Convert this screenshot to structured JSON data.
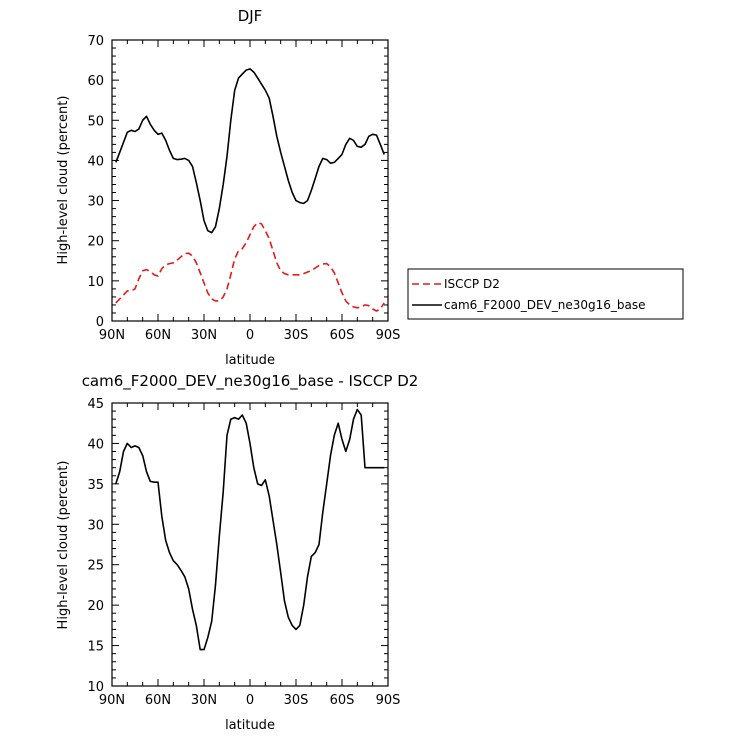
{
  "chart_data": [
    {
      "type": "line",
      "title": "DJF",
      "xlabel": "latitude",
      "ylabel": "High-level cloud (percent)",
      "xlim": [
        90,
        -90
      ],
      "ylim": [
        0,
        70
      ],
      "xticks": [
        90,
        60,
        30,
        0,
        -30,
        -60,
        -90
      ],
      "xtick_labels": [
        "90N",
        "60N",
        "30N",
        "0",
        "30S",
        "60S",
        "90S"
      ],
      "yticks": [
        0,
        10,
        20,
        30,
        40,
        50,
        60,
        70
      ],
      "ytick_labels": [
        "0",
        "10",
        "20",
        "30",
        "40",
        "50",
        "60",
        "70"
      ],
      "grid": false,
      "legend": {
        "placement": "right",
        "entries": [
          "ISCCP D2",
          "cam6_F2000_DEV_ne30g16_base"
        ]
      },
      "series": [
        {
          "name": "ISCCP D2",
          "color": "#e41a1c",
          "dash": "dashed",
          "x": [
            87.5,
            85,
            82.5,
            80,
            77.5,
            75,
            72.5,
            70,
            67.5,
            65,
            62.5,
            60,
            57.5,
            55,
            52.5,
            50,
            47.5,
            45,
            42.5,
            40,
            37.5,
            35,
            32.5,
            30,
            27.5,
            25,
            22.5,
            20,
            17.5,
            15,
            12.5,
            10,
            7.5,
            5,
            2.5,
            0,
            -2.5,
            -5,
            -7.5,
            -10,
            -12.5,
            -15,
            -17.5,
            -20,
            -22.5,
            -25,
            -27.5,
            -30,
            -32.5,
            -35,
            -37.5,
            -40,
            -42.5,
            -45,
            -47.5,
            -50,
            -52.5,
            -55,
            -57.5,
            -60,
            -62.5,
            -65,
            -67.5,
            -70,
            -72.5,
            -75,
            -77.5,
            -80,
            -82.5,
            -85,
            -87.5
          ],
          "y": [
            4.5,
            5.5,
            6.5,
            7.5,
            7.5,
            8.0,
            10.5,
            12.5,
            12.8,
            12.3,
            11.5,
            11.2,
            13.0,
            14.0,
            14.3,
            14.5,
            15.2,
            16.0,
            16.8,
            16.9,
            16.2,
            14.5,
            12.0,
            9.5,
            7.0,
            5.5,
            5.0,
            5.0,
            6.0,
            8.0,
            11.5,
            15.5,
            17.5,
            18.0,
            19.5,
            21.5,
            23.5,
            24.5,
            24.2,
            22.5,
            20.5,
            17.5,
            14.5,
            12.5,
            11.8,
            11.5,
            11.5,
            11.5,
            11.5,
            11.8,
            12.2,
            12.5,
            13.2,
            13.8,
            14.2,
            14.3,
            13.5,
            12.0,
            9.5,
            7.0,
            5.0,
            4.0,
            3.5,
            3.3,
            3.5,
            4.0,
            3.8,
            3.0,
            2.5,
            3.0,
            4.5
          ]
        },
        {
          "name": "cam6_F2000_DEV_ne30g16_base",
          "color": "#000000",
          "dash": "solid",
          "x": [
            87.5,
            85,
            82.5,
            80,
            77.5,
            75,
            72.5,
            70,
            67.5,
            65,
            62.5,
            60,
            57.5,
            55,
            52.5,
            50,
            47.5,
            45,
            42.5,
            40,
            37.5,
            35,
            32.5,
            30,
            27.5,
            25,
            22.5,
            20,
            17.5,
            15,
            12.5,
            10,
            7.5,
            5,
            2.5,
            0,
            -2.5,
            -5,
            -7.5,
            -10,
            -12.5,
            -15,
            -17.5,
            -20,
            -22.5,
            -25,
            -27.5,
            -30,
            -32.5,
            -35,
            -37.5,
            -40,
            -42.5,
            -45,
            -47.5,
            -50,
            -52.5,
            -55,
            -57.5,
            -60,
            -62.5,
            -65,
            -67.5,
            -70,
            -72.5,
            -75,
            -77.5,
            -80,
            -82.5,
            -85,
            -87.5
          ],
          "y": [
            39.5,
            42.0,
            44.5,
            47.0,
            47.5,
            47.2,
            47.8,
            50.0,
            51.0,
            49.0,
            47.5,
            46.5,
            46.8,
            45.0,
            42.5,
            40.5,
            40.2,
            40.3,
            40.5,
            40.0,
            38.5,
            34.5,
            30.0,
            25.0,
            22.5,
            22.0,
            23.5,
            28.0,
            34.0,
            41.0,
            50.0,
            57.5,
            60.5,
            61.5,
            62.5,
            62.8,
            62.0,
            60.5,
            59.0,
            57.5,
            55.5,
            51.0,
            46.0,
            42.0,
            38.5,
            35.0,
            32.0,
            30.0,
            29.5,
            29.3,
            30.0,
            32.5,
            35.5,
            38.5,
            40.5,
            40.2,
            39.3,
            39.5,
            40.5,
            41.5,
            44.0,
            45.5,
            45.0,
            43.5,
            43.3,
            44.0,
            46.0,
            46.5,
            46.3,
            44.0,
            41.5
          ]
        }
      ]
    },
    {
      "type": "line",
      "title": "cam6_F2000_DEV_ne30g16_base - ISCCP D2",
      "xlabel": "latitude",
      "ylabel": "High-level cloud (percent)",
      "xlim": [
        90,
        -90
      ],
      "ylim": [
        10,
        45
      ],
      "xticks": [
        90,
        60,
        30,
        0,
        -30,
        -60,
        -90
      ],
      "xtick_labels": [
        "90N",
        "60N",
        "30N",
        "0",
        "30S",
        "60S",
        "90S"
      ],
      "yticks": [
        10,
        15,
        20,
        25,
        30,
        35,
        40,
        45
      ],
      "ytick_labels": [
        "10",
        "15",
        "20",
        "25",
        "30",
        "35",
        "40",
        "45"
      ],
      "grid": false,
      "series": [
        {
          "color": "#000000",
          "dash": "solid",
          "x": [
            87.5,
            85,
            82.5,
            80,
            77.5,
            75,
            72.5,
            70,
            67.5,
            65,
            62.5,
            60,
            57.5,
            55,
            52.5,
            50,
            47.5,
            45,
            42.5,
            40,
            37.5,
            35,
            32.5,
            30,
            27.5,
            25,
            22.5,
            20,
            17.5,
            15,
            12.5,
            10,
            7.5,
            5,
            2.5,
            0,
            -2.5,
            -5,
            -7.5,
            -10,
            -12.5,
            -15,
            -17.5,
            -20,
            -22.5,
            -25,
            -27.5,
            -30,
            -32.5,
            -35,
            -37.5,
            -40,
            -42.5,
            -45,
            -47.5,
            -50,
            -52.5,
            -55,
            -57.5,
            -60,
            -62.5,
            -65,
            -67.5,
            -70,
            -72.5,
            -75,
            -77.5,
            -80,
            -82.5,
            -85,
            -87.5
          ],
          "y": [
            35.0,
            36.5,
            39.0,
            40.0,
            39.5,
            39.7,
            39.5,
            38.5,
            36.5,
            35.3,
            35.2,
            35.2,
            31.0,
            28.0,
            26.5,
            25.5,
            25.0,
            24.3,
            23.5,
            22.0,
            19.5,
            17.5,
            14.5,
            14.5,
            16.0,
            18.0,
            22.5,
            28.5,
            34.0,
            41.0,
            43.0,
            43.2,
            43.0,
            43.5,
            42.5,
            40.0,
            37.0,
            35.0,
            34.8,
            35.5,
            33.5,
            30.5,
            27.5,
            24.0,
            20.5,
            18.5,
            17.5,
            17.0,
            17.5,
            20.0,
            23.5,
            26.0,
            26.5,
            27.5,
            31.5,
            35.0,
            38.5,
            41.0,
            42.5,
            40.5,
            39.0,
            40.5,
            43.0,
            44.2,
            43.5,
            37.0,
            37.0,
            37.0,
            37.0,
            37.0,
            37.0
          ]
        }
      ]
    }
  ]
}
